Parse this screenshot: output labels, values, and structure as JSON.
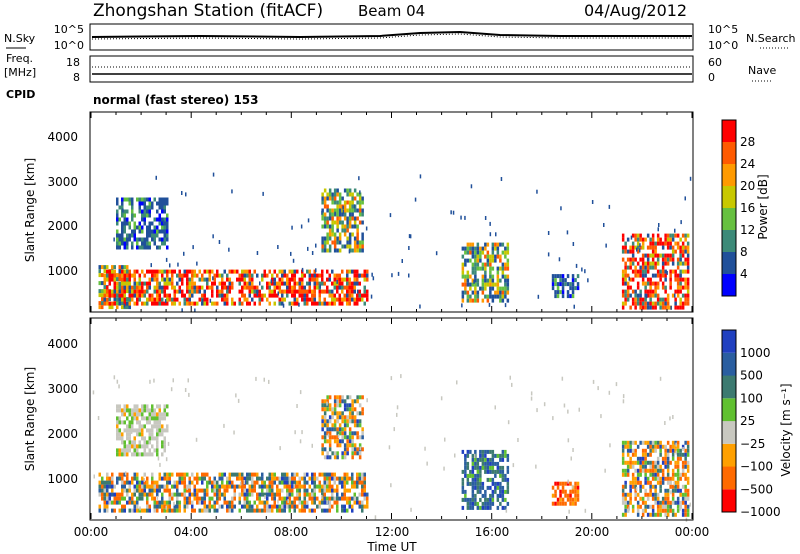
{
  "header": {
    "station": "Zhongshan Station (fitACF)",
    "beam": "Beam 04",
    "date": "04/Aug/2012"
  },
  "noise_panel": {
    "left_label": "N.Sky",
    "left_ticks": [
      "10^5",
      "10^0"
    ],
    "right_ticks": [
      "10^5",
      "10^0"
    ],
    "right_label": "N.Search"
  },
  "freq_panel": {
    "label_line1": "Freq.",
    "label_line2": "[MHz]",
    "left_ticks": [
      "18",
      "8"
    ],
    "right_ticks": [
      "60",
      "0"
    ],
    "right_label": "Nave",
    "cpid_label": "CPID",
    "mode_text": "normal (fast stereo) 153"
  },
  "colors": {
    "power_scale": [
      "#0000ff",
      "#20509a",
      "#3c8a78",
      "#66c040",
      "#c8c800",
      "#ff9a00",
      "#ff5a00",
      "#ff0000"
    ],
    "velocity_scale": [
      "#2040c0",
      "#2a5ea0",
      "#3c7a70",
      "#60c030",
      "#c8c8c0",
      "#ffa000",
      "#ff6a00",
      "#ff0000"
    ]
  },
  "chart_data": [
    {
      "type": "heatmap",
      "panel": "power",
      "ylabel": "Slant Range [km]",
      "ylim": [
        180,
        4600
      ],
      "yticks": [
        "1000",
        "2000",
        "3000",
        "4000"
      ],
      "colorbar_label": "Power [dB]",
      "colorbar_ticks": [
        "4",
        "8",
        "12",
        "16",
        "20",
        "24",
        "28"
      ],
      "colorbar_range": [
        0,
        32
      ],
      "regions": [
        {
          "t0": 0.3,
          "t1": 1.5,
          "r0": 300,
          "r1": 1200,
          "level": "medium"
        },
        {
          "t0": 0.5,
          "t1": 11.0,
          "r0": 350,
          "r1": 1100,
          "level": "high"
        },
        {
          "t0": 1.0,
          "t1": 3.0,
          "r0": 1600,
          "r1": 2700,
          "level": "low"
        },
        {
          "t0": 9.2,
          "t1": 10.8,
          "r0": 1500,
          "r1": 2900,
          "level": "medium"
        },
        {
          "t0": 14.8,
          "t1": 16.6,
          "r0": 400,
          "r1": 1700,
          "level": "medium"
        },
        {
          "t0": 18.4,
          "t1": 19.4,
          "r0": 500,
          "r1": 1000,
          "level": "low"
        },
        {
          "t0": 21.2,
          "t1": 23.8,
          "r0": 250,
          "r1": 1900,
          "level": "high"
        }
      ]
    },
    {
      "type": "heatmap",
      "panel": "velocity",
      "xlabel": "Time UT",
      "xticks": [
        "00:00",
        "04:00",
        "08:00",
        "12:00",
        "16:00",
        "20:00",
        "00:00"
      ],
      "xlim": [
        0,
        24
      ],
      "ylabel": "Slant Range [km]",
      "ylim": [
        180,
        4600
      ],
      "yticks": [
        "1000",
        "2000",
        "3000",
        "4000"
      ],
      "colorbar_label": "Velocity [m s⁻¹]",
      "colorbar_ticks": [
        "1000",
        "500",
        "100",
        "25",
        "−25",
        "−100",
        "−500",
        "−1000"
      ],
      "regions": [
        {
          "t0": 0.3,
          "t1": 11.0,
          "r0": 350,
          "r1": 1200,
          "level": "mixed"
        },
        {
          "t0": 1.0,
          "t1": 3.0,
          "r0": 1600,
          "r1": 2700,
          "level": "slow"
        },
        {
          "t0": 9.2,
          "t1": 10.8,
          "r0": 1500,
          "r1": 2900,
          "level": "mixed"
        },
        {
          "t0": 14.8,
          "t1": 16.6,
          "r0": 400,
          "r1": 1700,
          "level": "positive"
        },
        {
          "t0": 18.4,
          "t1": 19.4,
          "r0": 500,
          "r1": 1000,
          "level": "negative"
        },
        {
          "t0": 21.2,
          "t1": 23.8,
          "r0": 250,
          "r1": 1900,
          "level": "mixed"
        }
      ]
    }
  ]
}
